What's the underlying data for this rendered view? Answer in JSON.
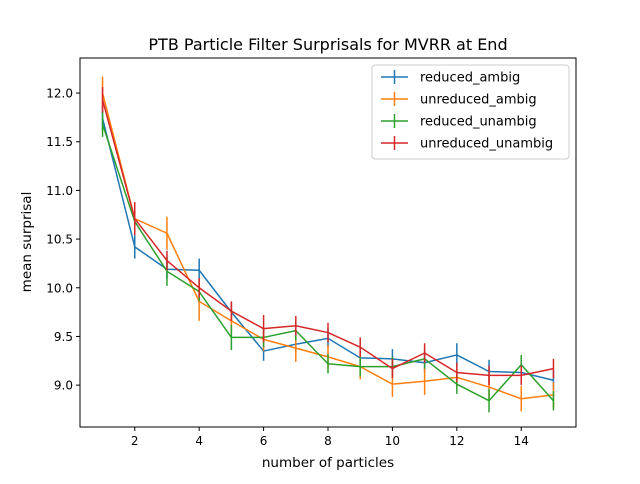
{
  "chart_data": {
    "type": "line",
    "title": "PTB Particle Filter Surprisals for MVRR at End",
    "xlabel": "number of particles",
    "ylabel": "mean surprisal",
    "xlim": [
      0.3,
      15.7
    ],
    "ylim": [
      8.57,
      12.36
    ],
    "xticks": [
      2,
      4,
      6,
      8,
      10,
      12,
      14
    ],
    "yticks": [
      9.0,
      9.5,
      10.0,
      10.5,
      11.0,
      11.5,
      12.0
    ],
    "xtick_labels": [
      "2",
      "4",
      "6",
      "8",
      "10",
      "12",
      "14"
    ],
    "ytick_labels": [
      "9.0",
      "9.5",
      "10.0",
      "10.5",
      "11.0",
      "11.5",
      "12.0"
    ],
    "legend_position": "top-right",
    "grid": false,
    "x": [
      1,
      2,
      3,
      4,
      5,
      6,
      7,
      8,
      9,
      10,
      11,
      12,
      13,
      14,
      15
    ],
    "series": [
      {
        "name": "reduced_ambig",
        "color": "#1f77b4",
        "values": [
          11.74,
          10.42,
          10.19,
          10.18,
          9.75,
          9.35,
          9.42,
          9.48,
          9.28,
          9.27,
          9.23,
          9.31,
          9.14,
          9.13,
          9.05
        ],
        "errors": [
          0.12,
          0.12,
          0.1,
          0.12,
          0.1,
          0.1,
          0.1,
          0.1,
          0.1,
          0.1,
          0.1,
          0.12,
          0.12,
          0.1,
          0.1
        ]
      },
      {
        "name": "unreduced_ambig",
        "color": "#ff7f0e",
        "values": [
          12.0,
          10.71,
          10.56,
          9.86,
          9.66,
          9.47,
          9.38,
          9.29,
          9.19,
          9.01,
          9.04,
          9.08,
          8.98,
          8.86,
          8.9
        ],
        "errors": [
          0.17,
          0.15,
          0.17,
          0.2,
          0.12,
          0.12,
          0.14,
          0.12,
          0.13,
          0.13,
          0.14,
          0.1,
          0.12,
          0.13,
          0.13
        ]
      },
      {
        "name": "reduced_unambig",
        "color": "#2ca02c",
        "values": [
          11.68,
          10.68,
          10.17,
          9.96,
          9.49,
          9.49,
          9.56,
          9.22,
          9.19,
          9.19,
          9.27,
          9.01,
          8.84,
          9.21,
          8.84
        ],
        "errors": [
          0.13,
          0.12,
          0.15,
          0.1,
          0.13,
          0.1,
          0.1,
          0.1,
          0.1,
          0.1,
          0.1,
          0.1,
          0.12,
          0.1,
          0.1
        ]
      },
      {
        "name": "unreduced_unambig",
        "color": "#d62728",
        "values": [
          11.93,
          10.71,
          10.28,
          10.0,
          9.76,
          9.58,
          9.61,
          9.54,
          9.39,
          9.17,
          9.33,
          9.13,
          9.1,
          9.1,
          9.17
        ],
        "errors": [
          0.13,
          0.17,
          0.1,
          0.1,
          0.1,
          0.14,
          0.1,
          0.1,
          0.1,
          0.1,
          0.1,
          0.1,
          0.1,
          0.1,
          0.1
        ]
      }
    ]
  }
}
